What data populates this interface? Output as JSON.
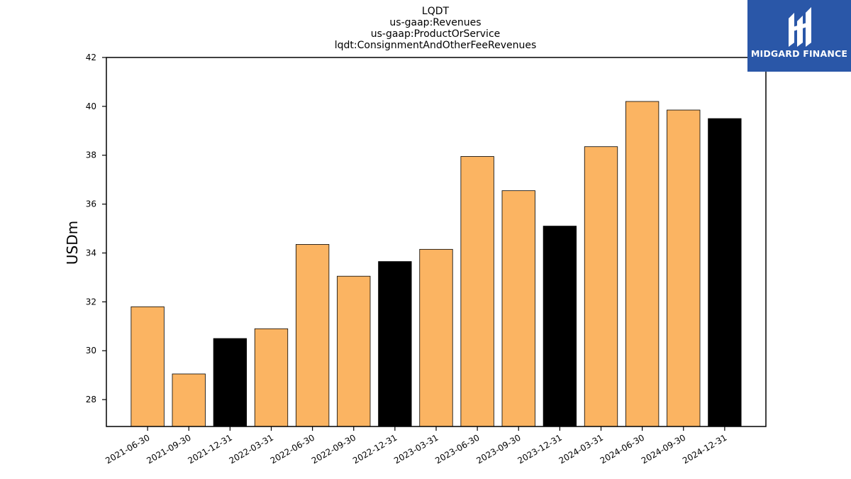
{
  "logo": {
    "text": "MIDGARD FINANCE",
    "icon": "midgard-logo-icon",
    "background": "#2a57a8"
  },
  "chart_data": {
    "type": "bar",
    "title_lines": [
      "LQDT",
      "us-gaap:Revenues",
      "us-gaap:ProductOrService",
      "lqdt:ConsignmentAndOtherFeeRevenues"
    ],
    "xlabel": "",
    "ylabel": "USDm",
    "ylim": [
      26.9,
      42
    ],
    "yticks": [
      28,
      30,
      32,
      34,
      36,
      38,
      40,
      42
    ],
    "categories": [
      "2021-06-30",
      "2021-09-30",
      "2021-12-31",
      "2022-03-31",
      "2022-06-30",
      "2022-09-30",
      "2022-12-31",
      "2023-03-31",
      "2023-06-30",
      "2023-09-30",
      "2023-12-31",
      "2024-03-31",
      "2024-06-30",
      "2024-09-30",
      "2024-12-31"
    ],
    "values": [
      31.8,
      29.05,
      30.5,
      30.9,
      34.35,
      33.05,
      33.65,
      34.15,
      37.95,
      36.55,
      35.1,
      38.35,
      40.2,
      39.85,
      39.5
    ],
    "colors": [
      "#fbb462",
      "#fbb462",
      "#000000",
      "#fbb462",
      "#fbb462",
      "#fbb462",
      "#000000",
      "#fbb462",
      "#fbb462",
      "#fbb462",
      "#000000",
      "#fbb462",
      "#fbb462",
      "#fbb462",
      "#000000"
    ],
    "grid": false,
    "legend": "none"
  }
}
